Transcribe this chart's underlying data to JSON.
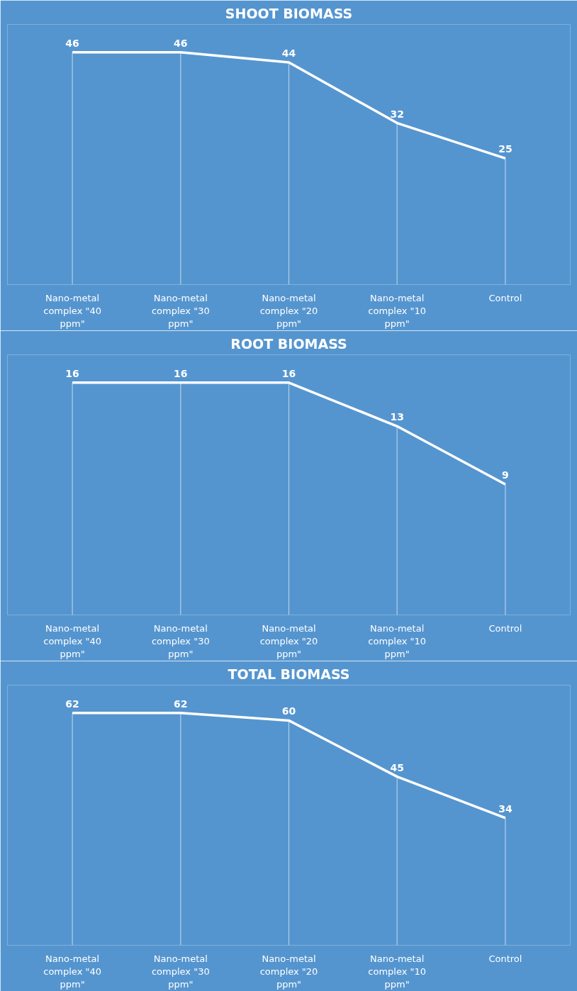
{
  "chart_data": [
    {
      "type": "line",
      "title": "SHOOT BIOMASS",
      "categories": [
        "Nano-metal complex \"40 ppm\"",
        "Nano-metal complex \"30 ppm\"",
        "Nano-metal complex \"20 ppm\"",
        "Nano-metal complex \"10 ppm\"",
        "Control"
      ],
      "series": [
        {
          "color": "#ffffff",
          "values": [
            46,
            46,
            44,
            32,
            25
          ]
        }
      ],
      "data_labels": true,
      "grid": "x",
      "line_style": "solid"
    },
    {
      "type": "line",
      "title": "ROOT BIOMASS",
      "categories": [
        "Nano-metal complex \"40 ppm\"",
        "Nano-metal complex \"30 ppm\"",
        "Nano-metal complex \"20 ppm\"",
        "Nano-metal complex \"10 ppm\"",
        "Control"
      ],
      "series": [
        {
          "color": "#ffffff",
          "values": [
            16,
            16,
            16,
            13,
            9
          ]
        }
      ],
      "data_labels": true,
      "grid": "x",
      "line_style": "solid"
    },
    {
      "type": "line",
      "title": "TOTAL BIOMASS",
      "categories": [
        "Nano-metal complex \"40 ppm\"",
        "Nano-metal complex \"30 ppm\"",
        "Nano-metal complex \"20 ppm\"",
        "Nano-metal complex \"10 ppm\"",
        "Control"
      ],
      "series": [
        {
          "color": "#ffffff",
          "values": [
            62,
            62,
            60,
            45,
            34
          ]
        }
      ],
      "data_labels": true,
      "grid": "x",
      "line_style": "solid"
    }
  ]
}
